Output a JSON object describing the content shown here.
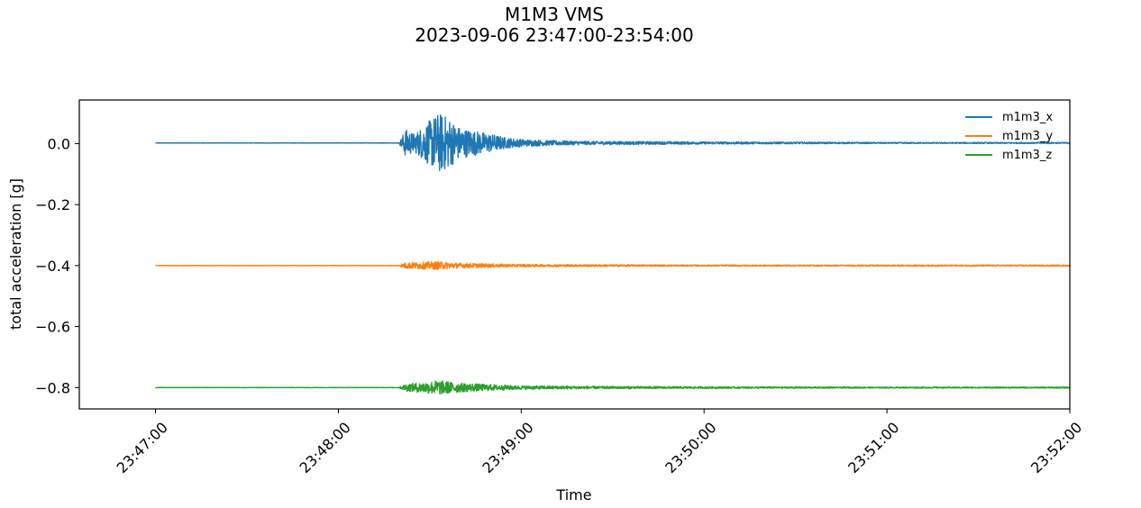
{
  "chart_data": {
    "type": "line",
    "title": "M1M3 VMS",
    "subtitle": "2023-09-06 23:47:00-23:54:00",
    "xlabel": "Time",
    "ylabel": "total acceleration [g]",
    "x_ticks": [
      "23:47:00",
      "23:48:00",
      "23:49:00",
      "23:50:00",
      "23:51:00",
      "23:52:00"
    ],
    "y_ticks": [
      "0.0",
      "−0.2",
      "−0.4",
      "−0.6",
      "−0.8"
    ],
    "xlim": [
      "23:46:35",
      "23:52:00"
    ],
    "ylim": [
      -0.87,
      0.143
    ],
    "grid": false,
    "legend_position": "top-right",
    "series": [
      {
        "name": "m1m3_x",
        "color": "#1f77b4",
        "baseline": 0.002,
        "start": "23:47:00",
        "end": "23:52:00",
        "envelope_t": [
          "23:48:20",
          "23:48:22",
          "23:48:25",
          "23:48:30",
          "23:48:33",
          "23:48:36",
          "23:48:40",
          "23:48:45",
          "23:48:50",
          "23:48:55",
          "23:49:00",
          "23:49:10",
          "23:49:20",
          "23:49:40",
          "23:50:00",
          "23:50:30",
          "23:51:00",
          "23:52:00"
        ],
        "envelope_amp": [
          0.002,
          0.045,
          0.03,
          0.075,
          0.1,
          0.085,
          0.05,
          0.04,
          0.03,
          0.018,
          0.012,
          0.008,
          0.006,
          0.005,
          0.004,
          0.003,
          0.002,
          0.002
        ]
      },
      {
        "name": "m1m3_y",
        "color": "#ff7f0e",
        "baseline": -0.4,
        "start": "23:47:00",
        "end": "23:52:00",
        "envelope_t": [
          "23:48:20",
          "23:48:22",
          "23:48:30",
          "23:48:33",
          "23:48:40",
          "23:48:50",
          "23:49:00",
          "23:49:30",
          "23:50:00",
          "23:51:00",
          "23:52:00"
        ],
        "envelope_amp": [
          0.002,
          0.01,
          0.012,
          0.013,
          0.008,
          0.006,
          0.004,
          0.003,
          0.002,
          0.002,
          0.002
        ]
      },
      {
        "name": "m1m3_z",
        "color": "#2ca02c",
        "baseline": -0.8,
        "start": "23:47:00",
        "end": "23:52:00",
        "envelope_t": [
          "23:48:20",
          "23:48:22",
          "23:48:30",
          "23:48:33",
          "23:48:40",
          "23:48:50",
          "23:49:00",
          "23:49:30",
          "23:50:00",
          "23:51:00",
          "23:52:00"
        ],
        "envelope_amp": [
          0.002,
          0.012,
          0.02,
          0.024,
          0.015,
          0.01,
          0.006,
          0.004,
          0.003,
          0.002,
          0.002
        ]
      }
    ]
  }
}
